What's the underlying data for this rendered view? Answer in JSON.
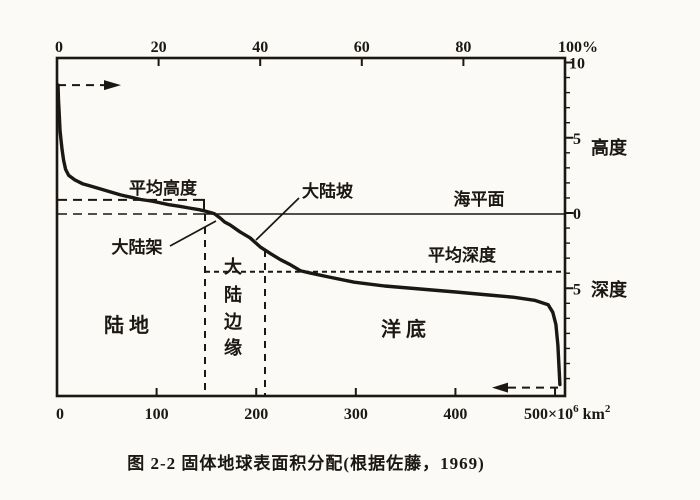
{
  "figure": {
    "caption": "图 2-2  固体地球表面积分配(根据佐藤，1969)",
    "ink_color": "#1b1712",
    "paper_color": "#fbfaf6"
  },
  "labels": {
    "mean_height": "平均高度",
    "continental_slope": "大陆坡",
    "sea_level": "海平面",
    "continental_shelf": "大陆架",
    "mean_depth": "平均深度",
    "land": "陆地",
    "ocean_floor": "洋底",
    "continental_margin_vertical": [
      "大",
      "陆",
      "边",
      "缘"
    ],
    "height_axis": "高度",
    "depth_axis": "深度"
  },
  "chart_data": {
    "type": "line",
    "title": "固体地球表面积分配(根据佐藤，1969)",
    "description": "Hypsographic curve: cumulative distribution of solid-earth surface elevation",
    "top_axis": {
      "unit": "%",
      "ticks_percent": [
        0,
        20,
        40,
        60,
        80,
        100
      ],
      "tick_labels": [
        "0",
        "20",
        "40",
        "60",
        "80",
        "100%"
      ],
      "range_percent": [
        0,
        100
      ]
    },
    "bottom_axis": {
      "unit": "×10⁶ km²",
      "ticks_1e6_km2": [
        0,
        100,
        200,
        300,
        400,
        500
      ],
      "tick_labels": [
        "0",
        "100",
        "200",
        "300",
        "400"
      ],
      "last_label_parts": {
        "base": "500×10",
        "exponent": "6",
        "unit": " km",
        "unit_exponent": "2"
      },
      "axis_total_1e6_km2": 510
    },
    "right_axis": {
      "unit": "km",
      "major_ticks_km": [
        10,
        5,
        0,
        -5
      ],
      "tick_labels": [
        "10",
        "5",
        "0",
        "5"
      ],
      "minor_tick_every_km": 1,
      "minor_tick_span_km": [
        9,
        -11
      ],
      "upper_section_label": "高度",
      "lower_section_label": "深度",
      "range_km": [
        10.3,
        -12.2
      ]
    },
    "reference_levels_km": {
      "sea_level": 0,
      "mean_land_height": 0.87,
      "mean_ocean_depth": -3.9,
      "max_height_arrow": 8.5,
      "max_depth_arrow": -11.6
    },
    "grid": false,
    "curve_percent_vs_km": [
      [
        0.2,
        8.5
      ],
      [
        0.3,
        7.5
      ],
      [
        0.45,
        6.5
      ],
      [
        0.6,
        5.5
      ],
      [
        0.8,
        4.8
      ],
      [
        1.0,
        4.2
      ],
      [
        1.3,
        3.5
      ],
      [
        1.7,
        2.9
      ],
      [
        2.3,
        2.5
      ],
      [
        3.5,
        2.2
      ],
      [
        5.0,
        1.95
      ],
      [
        6.5,
        1.8
      ],
      [
        8.5,
        1.6
      ],
      [
        10.5,
        1.4
      ],
      [
        12.5,
        1.2
      ],
      [
        14.5,
        1.05
      ],
      [
        16.5,
        0.9
      ],
      [
        18.5,
        0.8
      ],
      [
        20.0,
        0.7
      ],
      [
        22.0,
        0.55
      ],
      [
        24.0,
        0.45
      ],
      [
        26.0,
        0.33
      ],
      [
        28.0,
        0.22
      ],
      [
        29.1,
        0.13
      ],
      [
        30.1,
        0.04
      ],
      [
        31.0,
        -0.05
      ],
      [
        32.1,
        -0.33
      ],
      [
        33.0,
        -0.6
      ],
      [
        34.1,
        -0.8
      ],
      [
        36.0,
        -1.25
      ],
      [
        38.0,
        -1.65
      ],
      [
        40.0,
        -2.25
      ],
      [
        42.0,
        -2.7
      ],
      [
        44.0,
        -3.1
      ],
      [
        46.0,
        -3.45
      ],
      [
        48.0,
        -3.85
      ],
      [
        50.0,
        -4.0
      ],
      [
        53.5,
        -4.25
      ],
      [
        58.5,
        -4.6
      ],
      [
        64.5,
        -4.85
      ],
      [
        71.5,
        -5.05
      ],
      [
        78.5,
        -5.25
      ],
      [
        85.0,
        -5.45
      ],
      [
        90.0,
        -5.6
      ],
      [
        94.0,
        -5.8
      ],
      [
        96.7,
        -6.1
      ],
      [
        97.6,
        -6.6
      ],
      [
        98.2,
        -7.4
      ],
      [
        98.6,
        -8.8
      ],
      [
        98.8,
        -10.1
      ],
      [
        99.0,
        -11.4
      ]
    ]
  }
}
